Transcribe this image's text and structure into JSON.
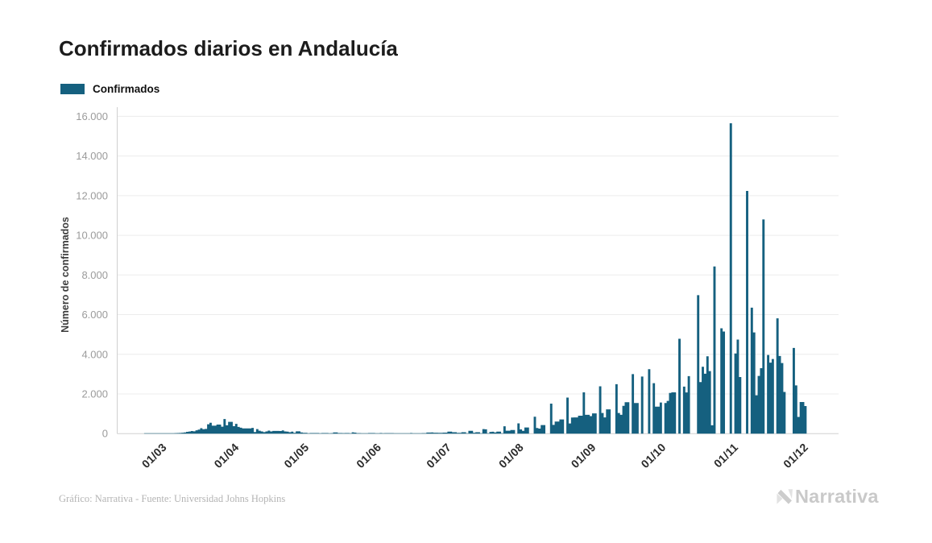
{
  "header": {
    "title": "Confirmados diarios en Andalucía"
  },
  "legend": {
    "label": "Confirmados",
    "swatch_color": "#15607f"
  },
  "footer": {
    "credit": "Gráfico: Narrativa - Fuente: Universidad Johns Hopkins"
  },
  "watermark": {
    "brand": "Narrativa",
    "logo_icon": "narrativa-ribbon-n-icon"
  },
  "colors": {
    "bar": "#15607f",
    "grid": "#ececec",
    "axis": "#d0d0d0",
    "tick_text": "#9b9b9b",
    "xtick_text": "#2b2b2b",
    "title_text": "#1c1c1c",
    "footer_text": "#b4b4b4",
    "watermark_text": "#c9c9c9"
  },
  "chart_data": {
    "type": "bar",
    "title": "Confirmados diarios en Andalucía",
    "xlabel": "",
    "ylabel": "Número de confirmados",
    "series_name": "Confirmados",
    "ylim": [
      0,
      16000
    ],
    "ytick_step": 2000,
    "ytick_labels": [
      "0",
      "2.000",
      "4.000",
      "6.000",
      "8.000",
      "10.000",
      "12.000",
      "14.000",
      "16.000"
    ],
    "xtick_labels": [
      "01/03",
      "01/04",
      "01/05",
      "01/06",
      "01/07",
      "01/08",
      "01/09",
      "01/10",
      "01/11",
      "01/12"
    ],
    "xtick_indices": [
      20,
      51,
      81,
      112,
      142,
      173,
      204,
      234,
      265,
      295
    ],
    "grid": "horizontal",
    "legend_position": "top-left",
    "dates": [
      "2020-02-10",
      "2020-02-11",
      "2020-02-12",
      "2020-02-13",
      "2020-02-14",
      "2020-02-15",
      "2020-02-16",
      "2020-02-17",
      "2020-02-18",
      "2020-02-19",
      "2020-02-20",
      "2020-02-21",
      "2020-02-22",
      "2020-02-23",
      "2020-02-24",
      "2020-02-25",
      "2020-02-26",
      "2020-02-27",
      "2020-02-28",
      "2020-02-29",
      "2020-03-01",
      "2020-03-02",
      "2020-03-03",
      "2020-03-04",
      "2020-03-05",
      "2020-03-06",
      "2020-03-07",
      "2020-03-08",
      "2020-03-09",
      "2020-03-10",
      "2020-03-11",
      "2020-03-12",
      "2020-03-13",
      "2020-03-14",
      "2020-03-15",
      "2020-03-16",
      "2020-03-17",
      "2020-03-18",
      "2020-03-19",
      "2020-03-20",
      "2020-03-21",
      "2020-03-22",
      "2020-03-23",
      "2020-03-24",
      "2020-03-25",
      "2020-03-26",
      "2020-03-27",
      "2020-03-28",
      "2020-03-29",
      "2020-03-30",
      "2020-03-31",
      "2020-04-01",
      "2020-04-02",
      "2020-04-03",
      "2020-04-04",
      "2020-04-05",
      "2020-04-06",
      "2020-04-07",
      "2020-04-08",
      "2020-04-09",
      "2020-04-10",
      "2020-04-11",
      "2020-04-12",
      "2020-04-13",
      "2020-04-14",
      "2020-04-15",
      "2020-04-16",
      "2020-04-17",
      "2020-04-18",
      "2020-04-19",
      "2020-04-20",
      "2020-04-21",
      "2020-04-22",
      "2020-04-23",
      "2020-04-24",
      "2020-04-25",
      "2020-04-26",
      "2020-04-27",
      "2020-04-28",
      "2020-04-29",
      "2020-04-30",
      "2020-05-01",
      "2020-05-02",
      "2020-05-03",
      "2020-05-04",
      "2020-05-05",
      "2020-05-06",
      "2020-05-07",
      "2020-05-08",
      "2020-05-09",
      "2020-05-10",
      "2020-05-11",
      "2020-05-12",
      "2020-05-13",
      "2020-05-14",
      "2020-05-15",
      "2020-05-16",
      "2020-05-17",
      "2020-05-18",
      "2020-05-19",
      "2020-05-20",
      "2020-05-21",
      "2020-05-22",
      "2020-05-23",
      "2020-05-24",
      "2020-05-25",
      "2020-05-26",
      "2020-05-27",
      "2020-05-28",
      "2020-05-29",
      "2020-05-30",
      "2020-05-31",
      "2020-06-01",
      "2020-06-02",
      "2020-06-03",
      "2020-06-04",
      "2020-06-05",
      "2020-06-06",
      "2020-06-07",
      "2020-06-08",
      "2020-06-09",
      "2020-06-10",
      "2020-06-11",
      "2020-06-12",
      "2020-06-13",
      "2020-06-14",
      "2020-06-15",
      "2020-06-16",
      "2020-06-17",
      "2020-06-18",
      "2020-06-19",
      "2020-06-20",
      "2020-06-21",
      "2020-06-22",
      "2020-06-23",
      "2020-06-24",
      "2020-06-25",
      "2020-06-26",
      "2020-06-27",
      "2020-06-28",
      "2020-06-29",
      "2020-06-30",
      "2020-07-01",
      "2020-07-02",
      "2020-07-03",
      "2020-07-04",
      "2020-07-05",
      "2020-07-06",
      "2020-07-07",
      "2020-07-08",
      "2020-07-09",
      "2020-07-10",
      "2020-07-11",
      "2020-07-12",
      "2020-07-13",
      "2020-07-14",
      "2020-07-15",
      "2020-07-16",
      "2020-07-17",
      "2020-07-18",
      "2020-07-19",
      "2020-07-20",
      "2020-07-21",
      "2020-07-22",
      "2020-07-23",
      "2020-07-24",
      "2020-07-25",
      "2020-07-26",
      "2020-07-27",
      "2020-07-28",
      "2020-07-29",
      "2020-07-30",
      "2020-07-31",
      "2020-08-01",
      "2020-08-02",
      "2020-08-03",
      "2020-08-04",
      "2020-08-05",
      "2020-08-06",
      "2020-08-07",
      "2020-08-08",
      "2020-08-09",
      "2020-08-10",
      "2020-08-11",
      "2020-08-12",
      "2020-08-13",
      "2020-08-14",
      "2020-08-15",
      "2020-08-16",
      "2020-08-17",
      "2020-08-18",
      "2020-08-19",
      "2020-08-20",
      "2020-08-21",
      "2020-08-22",
      "2020-08-23",
      "2020-08-24",
      "2020-08-25",
      "2020-08-26",
      "2020-08-27",
      "2020-08-28",
      "2020-08-29",
      "2020-08-30",
      "2020-08-31",
      "2020-09-01",
      "2020-09-02",
      "2020-09-03",
      "2020-09-04",
      "2020-09-05",
      "2020-09-06",
      "2020-09-07",
      "2020-09-08",
      "2020-09-09",
      "2020-09-10",
      "2020-09-11",
      "2020-09-12",
      "2020-09-13",
      "2020-09-14",
      "2020-09-15",
      "2020-09-16",
      "2020-09-17",
      "2020-09-18",
      "2020-09-19",
      "2020-09-20",
      "2020-09-21",
      "2020-09-22",
      "2020-09-23",
      "2020-09-24",
      "2020-09-25",
      "2020-09-26",
      "2020-09-27",
      "2020-09-28",
      "2020-09-29",
      "2020-09-30",
      "2020-10-01",
      "2020-10-02",
      "2020-10-03",
      "2020-10-04",
      "2020-10-05",
      "2020-10-06",
      "2020-10-07",
      "2020-10-08",
      "2020-10-09",
      "2020-10-10",
      "2020-10-11",
      "2020-10-12",
      "2020-10-13",
      "2020-10-14",
      "2020-10-15",
      "2020-10-16",
      "2020-10-17",
      "2020-10-18",
      "2020-10-19",
      "2020-10-20",
      "2020-10-21",
      "2020-10-22",
      "2020-10-23",
      "2020-10-24",
      "2020-10-25",
      "2020-10-26",
      "2020-10-27",
      "2020-10-28",
      "2020-10-29",
      "2020-10-30",
      "2020-10-31",
      "2020-11-01",
      "2020-11-02",
      "2020-11-03",
      "2020-11-04",
      "2020-11-05",
      "2020-11-06",
      "2020-11-07",
      "2020-11-08",
      "2020-11-09",
      "2020-11-10",
      "2020-11-11",
      "2020-11-12",
      "2020-11-13",
      "2020-11-14",
      "2020-11-15",
      "2020-11-16",
      "2020-11-17",
      "2020-11-18",
      "2020-11-19",
      "2020-11-20",
      "2020-11-21",
      "2020-11-22",
      "2020-11-23",
      "2020-11-24",
      "2020-11-25",
      "2020-11-26",
      "2020-11-27",
      "2020-11-28",
      "2020-11-29",
      "2020-11-30",
      "2020-12-01"
    ],
    "values": [
      0,
      0,
      0,
      0,
      0,
      0,
      0,
      0,
      0,
      0,
      0,
      0,
      2,
      2,
      3,
      3,
      4,
      5,
      6,
      8,
      10,
      12,
      14,
      16,
      20,
      25,
      30,
      35,
      45,
      60,
      90,
      105,
      130,
      115,
      165,
      200,
      270,
      220,
      235,
      470,
      545,
      400,
      400,
      455,
      455,
      350,
      735,
      420,
      590,
      590,
      375,
      490,
      337,
      300,
      262,
      264,
      264,
      264,
      288,
      80,
      228,
      144,
      110,
      75,
      110,
      150,
      110,
      134,
      134,
      134,
      130,
      160,
      110,
      102,
      70,
      102,
      40,
      115,
      115,
      61,
      37,
      37,
      5,
      28,
      28,
      28,
      28,
      5,
      30,
      30,
      30,
      5,
      25,
      60,
      60,
      30,
      30,
      25,
      28,
      28,
      4,
      65,
      50,
      22,
      22,
      6,
      6,
      6,
      28,
      28,
      28,
      8,
      8,
      28,
      8,
      25,
      25,
      25,
      25,
      8,
      8,
      8,
      10,
      8,
      8,
      8,
      30,
      8,
      8,
      8,
      8,
      22,
      22,
      55,
      55,
      60,
      45,
      45,
      40,
      40,
      50,
      50,
      100,
      100,
      70,
      70,
      40,
      40,
      70,
      70,
      5,
      140,
      140,
      45,
      70,
      70,
      8,
      228,
      216,
      10,
      85,
      95,
      60,
      100,
      100,
      8,
      370,
      145,
      145,
      180,
      180,
      0,
      515,
      212,
      140,
      310,
      310,
      0,
      0,
      850,
      280,
      250,
      430,
      430,
      0,
      0,
      1510,
      440,
      610,
      610,
      716,
      716,
      0,
      1815,
      512,
      810,
      815,
      815,
      900,
      900,
      2080,
      950,
      950,
      880,
      1020,
      1020,
      0,
      2387,
      1040,
      817,
      1224,
      1224,
      0,
      0,
      2493,
      1040,
      950,
      1400,
      1585,
      1585,
      0,
      3000,
      1540,
      1540,
      0,
      2880,
      0,
      0,
      3250,
      0,
      2540,
      1360,
      1360,
      1565,
      0,
      1540,
      1650,
      2050,
      2080,
      2080,
      0,
      4780,
      0,
      2370,
      2075,
      2900,
      0,
      0,
      0,
      6980,
      2600,
      3370,
      3020,
      3900,
      3150,
      420,
      8430,
      0,
      0,
      5310,
      5150,
      0,
      0,
      15650,
      0,
      4040,
      4740,
      2850,
      0,
      0,
      12240,
      0,
      6350,
      5100,
      1935,
      2910,
      3300,
      10800,
      0,
      3965,
      3580,
      3760,
      0,
      5815,
      3915,
      3560,
      2100,
      0,
      0,
      0,
      4320,
      2430,
      840,
      1595,
      1595,
      1390
    ]
  }
}
